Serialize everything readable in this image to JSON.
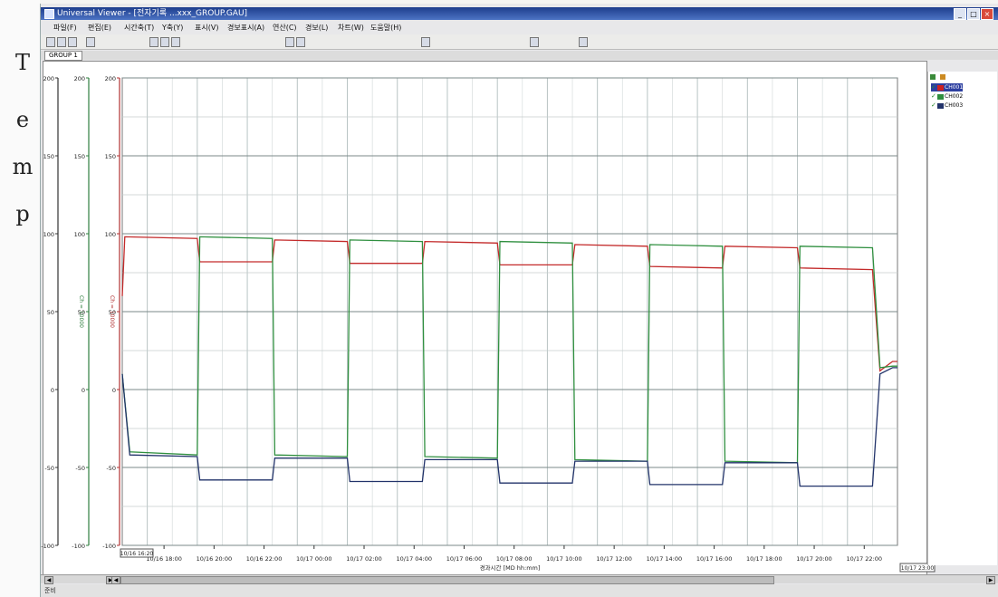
{
  "side_label": [
    "T",
    "e",
    "m",
    "p"
  ],
  "window": {
    "title": "Universal Viewer - [전자기록 ...xxx_GROUP.GAU]",
    "min_label": "_",
    "max_label": "□",
    "close_label": "×"
  },
  "menu": [
    "파일(F)",
    "편집(E)",
    "시간축(T)",
    "Y축(Y)",
    "표시(V)",
    "경보표시(A)",
    "연산(C)",
    "경보(L)",
    "차트(W)",
    "도움말(H)"
  ],
  "toolbar_icons": [
    "open-icon",
    "save-icon",
    "print-icon",
    "copy-icon",
    "zoom-in-icon",
    "zoom-out-icon",
    "cursor-icon",
    "grid-icon",
    "table-icon",
    "chart-icon",
    "settings-icon",
    "help-icon"
  ],
  "tab": {
    "label": "GROUP 1"
  },
  "statusbar": {
    "text": "준비"
  },
  "x_axis": {
    "title": "경과시간 [MD hh:mm]",
    "start_box": "10/16 16:20",
    "end_box": "10/17 23:00",
    "ticks": [
      "10/16 18:00",
      "10/16 20:00",
      "10/16 22:00",
      "10/17 00:00",
      "10/17 02:00",
      "10/17 04:00",
      "10/17 06:00",
      "10/17 08:00",
      "10/17 10:00",
      "10/17 12:00",
      "10/17 14:00",
      "10/17 16:00",
      "10/17 18:00",
      "10/17 20:00",
      "10/17 22:00"
    ]
  },
  "y_axes": [
    {
      "unit": "",
      "color": "#333333",
      "ticks": [
        "200",
        "150",
        "100",
        "50",
        "0",
        "-50",
        "-100"
      ]
    },
    {
      "unit": "Ch = 10000",
      "color": "#2f7f3f",
      "ticks": [
        "200",
        "150",
        "100",
        "50",
        "0",
        "-50",
        "-100"
      ]
    },
    {
      "unit": "Ch = 10000",
      "color": "#b03030",
      "ticks": [
        "200",
        "150",
        "100",
        "50",
        "0",
        "-50",
        "-100"
      ]
    }
  ],
  "legend": {
    "items": [
      {
        "name": "CH001",
        "color": "#cc2222",
        "selected": true
      },
      {
        "name": "CH002",
        "color": "#2f8f3f",
        "selected": false
      },
      {
        "name": "CH003",
        "color": "#22336a",
        "selected": false
      }
    ]
  },
  "chart_data": {
    "type": "line",
    "xlabel": "경과시간 [MD hh:mm]",
    "ylabel": "",
    "x_unit": "hours from 10/16 16:20",
    "xlim": [
      0,
      31
    ],
    "ylim": [
      -100,
      200
    ],
    "grid": true,
    "legend_position": "right",
    "series": [
      {
        "name": "CH001",
        "color": "#c32a2a",
        "x": [
          0,
          0.1,
          3,
          3.1,
          6,
          6.1,
          9,
          9.1,
          12,
          12.1,
          15,
          15.1,
          18,
          18.1,
          21,
          21.1,
          24,
          24.1,
          27,
          27.1,
          30,
          30.3,
          30.8,
          31
        ],
        "y": [
          60,
          98,
          97,
          82,
          82,
          96,
          95,
          81,
          81,
          95,
          94,
          80,
          80,
          93,
          92,
          79,
          78,
          92,
          91,
          78,
          77,
          12,
          18,
          18
        ]
      },
      {
        "name": "CH002",
        "color": "#2f8f3f",
        "x": [
          0,
          0.3,
          3,
          3.1,
          6,
          6.1,
          9,
          9.1,
          12,
          12.1,
          15,
          15.1,
          18,
          18.1,
          21,
          21.1,
          24,
          24.1,
          27,
          27.1,
          30,
          30.3,
          30.8,
          31
        ],
        "y": [
          10,
          -40,
          -42,
          98,
          97,
          -42,
          -43,
          96,
          95,
          -43,
          -44,
          95,
          94,
          -45,
          -46,
          93,
          92,
          -46,
          -47,
          92,
          91,
          14,
          15,
          15
        ]
      },
      {
        "name": "CH003",
        "color": "#22336a",
        "x": [
          0,
          0.3,
          3,
          3.1,
          6,
          6.1,
          9,
          9.1,
          12,
          12.1,
          15,
          15.1,
          18,
          18.1,
          21,
          21.1,
          24,
          24.1,
          27,
          27.1,
          30,
          30.3,
          30.8,
          31
        ],
        "y": [
          10,
          -42,
          -43,
          -58,
          -58,
          -44,
          -44,
          -59,
          -59,
          -45,
          -45,
          -60,
          -60,
          -46,
          -46,
          -61,
          -61,
          -47,
          -47,
          -62,
          -62,
          10,
          14,
          14
        ]
      }
    ]
  }
}
